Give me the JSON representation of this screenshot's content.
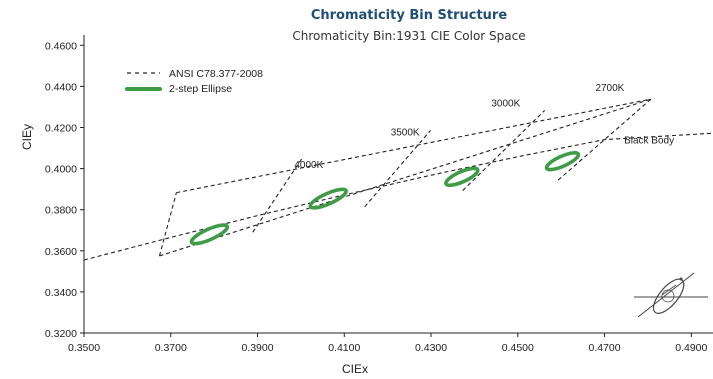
{
  "chart_data": {
    "type": "line",
    "title": "Chromaticity Bin Structure",
    "subtitle": "Chromaticity Bin:1931 CIE Color Space",
    "xlabel": "CIEx",
    "ylabel": "CIEy",
    "xlim": [
      0.35,
      0.495
    ],
    "ylim": [
      0.32,
      0.465
    ],
    "xticks": [
      "0.3500",
      "0.3700",
      "0.3900",
      "0.4100",
      "0.4300",
      "0.4500",
      "0.4700",
      "0.4900"
    ],
    "yticks": [
      "0.3200",
      "0.3400",
      "0.3600",
      "0.3800",
      "0.4000",
      "0.4200",
      "0.4400",
      "0.4600"
    ],
    "grid": false,
    "legend": {
      "position": "top-left",
      "entries": [
        {
          "label": "ANSI C78.377-2008",
          "style": "dashed",
          "color": "#222222"
        },
        {
          "label": "2-step Ellipse",
          "style": "ellipse",
          "color": "#3f9b46"
        }
      ]
    },
    "series": [
      {
        "name": "Black Body",
        "x": [
          0.35,
          0.37,
          0.39,
          0.41,
          0.43,
          0.45,
          0.47,
          0.495
        ],
        "y": [
          0.3555,
          0.3665,
          0.3771,
          0.3872,
          0.3968,
          0.4058,
          0.4141,
          0.4172
        ]
      },
      {
        "name": "ANSI C78.377-2008",
        "segments": [
          {
            "x": [
              0.3674,
              0.4807
            ],
            "y": [
              0.3575,
              0.4338
            ]
          },
          {
            "x": [
              0.3713,
              0.4807
            ],
            "y": [
              0.3883,
              0.4338
            ]
          },
          {
            "x": [
              0.3674,
              0.3713
            ],
            "y": [
              0.3575,
              0.3883
            ]
          },
          {
            "x": [
              0.3889,
              0.4002
            ],
            "y": [
              0.369,
              0.4048
            ]
          },
          {
            "x": [
              0.4147,
              0.4299
            ],
            "y": [
              0.3814,
              0.4186
            ]
          },
          {
            "x": [
              0.4373,
              0.4562
            ],
            "y": [
              0.3893,
              0.4283
            ]
          },
          {
            "x": [
              0.4593,
              0.4807
            ],
            "y": [
              0.3944,
              0.4338
            ]
          }
        ]
      }
    ],
    "ellipses": [
      {
        "cx": 0.3789,
        "cy": 0.368,
        "rx": 0.0045,
        "ry": 0.0046
      },
      {
        "cx": 0.4063,
        "cy": 0.3854,
        "rx": 0.0045,
        "ry": 0.0046
      },
      {
        "cx": 0.4371,
        "cy": 0.396,
        "rx": 0.004,
        "ry": 0.0045
      },
      {
        "cx": 0.4603,
        "cy": 0.4036,
        "rx": 0.004,
        "ry": 0.0044
      }
    ],
    "annotations": [
      {
        "text": "4000K",
        "x": 0.3985,
        "y": 0.4004
      },
      {
        "text": "3500K",
        "x": 0.4207,
        "y": 0.4161
      },
      {
        "text": "3000K",
        "x": 0.4439,
        "y": 0.4301
      },
      {
        "text": "2700K",
        "x": 0.4679,
        "y": 0.4377
      },
      {
        "text": "Black Body",
        "x": 0.4745,
        "y": 0.4122
      }
    ]
  }
}
